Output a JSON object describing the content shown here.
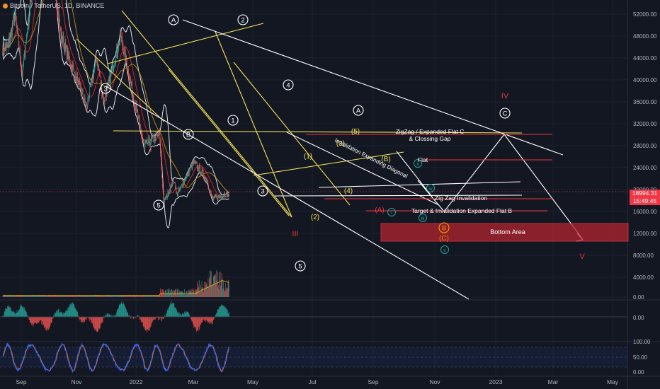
{
  "header": {
    "symbol": "Bitcoin / TetherUS, 1D, BINANCE"
  },
  "price_tag": {
    "price": "18994.31",
    "countdown": "15:49:45",
    "color": "#f23645"
  },
  "colors": {
    "background": "#131722",
    "grid": "#1e222d",
    "bull": "#26a69a",
    "bear": "#ef5350",
    "yellow": "#f5e35a",
    "white": "#ffffff",
    "red_line": "#f23645",
    "zone": "#b2232f",
    "ma_red": "#c62828",
    "ma_gold": "#d4a017",
    "stoch_k": "#2962ff",
    "stoch_d": "#ff6d00"
  },
  "chart_data": {
    "type": "candlestick",
    "title": "",
    "x_ticks": [
      "Sep",
      "Nov",
      "2022",
      "Mar",
      "May",
      "Jul",
      "Sep",
      "Nov",
      "2023",
      "Mar",
      "May"
    ],
    "y_ticks": [
      "52000.00",
      "48000.00",
      "44000.00",
      "40000.00",
      "36000.00",
      "32000.00",
      "28000.00",
      "24000.00",
      "20000.00",
      "16000.00",
      "12000.00",
      "8000.00",
      "4000.00",
      "0.00"
    ],
    "ylim": [
      0,
      54000
    ],
    "last_price": 18994.31,
    "price_anchors": [
      [
        "2021-08-25",
        46000
      ],
      [
        "2021-09-07",
        52000
      ],
      [
        "2021-09-21",
        41000
      ],
      [
        "2021-10-20",
        65000
      ],
      [
        "2021-11-10",
        68000
      ],
      [
        "2021-12-04",
        48000
      ],
      [
        "2022-01-22",
        35000
      ],
      [
        "2022-02-10",
        44000
      ],
      [
        "2022-02-24",
        36000
      ],
      [
        "2022-03-28",
        48000
      ],
      [
        "2022-05-12",
        28000
      ],
      [
        "2022-06-10",
        30000
      ],
      [
        "2022-06-18",
        17600
      ],
      [
        "2022-07-08",
        21800
      ],
      [
        "2022-07-13",
        19000
      ],
      [
        "2022-08-15",
        25000
      ],
      [
        "2022-09-10",
        21600
      ],
      [
        "2022-09-13",
        20000
      ],
      [
        "2022-09-20",
        18300
      ],
      [
        "2022-10-15",
        19200
      ],
      [
        "2022-10-21",
        18990
      ]
    ],
    "volume_ylim": [
      0,
      8000
    ],
    "volume_ticks": [
      "8000.00",
      "4000.00",
      "0.00"
    ],
    "oscillator_ticks": [
      "0.00"
    ],
    "stoch_ticks": [
      "100.00",
      "50.00",
      "0.00"
    ],
    "wave_labels": [
      "A",
      "2",
      "4",
      "C",
      "3",
      "1",
      "B",
      "3",
      "5",
      "5",
      "A",
      "B",
      "C"
    ],
    "subwave_labels": [
      "(5)",
      "(3)",
      "(1)",
      "(B)",
      "(4)",
      "(2)",
      "(A)",
      "(C)"
    ],
    "minor_labels": [
      "ii",
      "iv",
      "i",
      "iii",
      "v"
    ],
    "degree_labels": [
      "I",
      "III",
      "IV",
      "V"
    ],
    "annotations": [
      "ZigZag / Expanded Flat C",
      "& Clossing Gap",
      "Flat",
      "Zig Zag Invalidation",
      "Target & Invalidation Expanded Flat B",
      "Bottom Area",
      "Invalidation Expanding Diagonal"
    ]
  }
}
